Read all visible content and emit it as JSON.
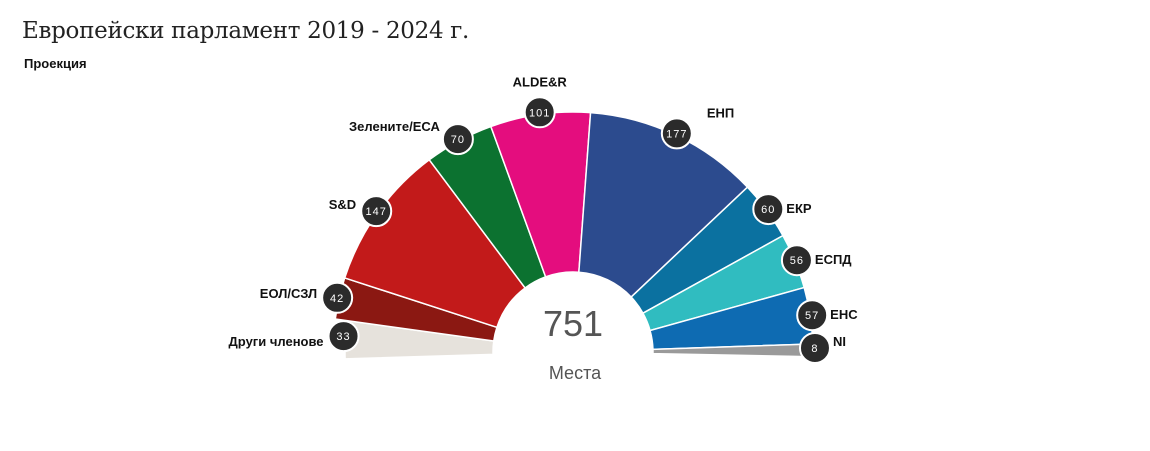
{
  "title": "Европейски парламент 2019 - 2024 г.",
  "subtitle": "Проекция",
  "chart_data": {
    "type": "pie",
    "variant": "parliament-half-donut",
    "total": "751",
    "total_label": "Места",
    "slices": [
      {
        "label": "Други членове",
        "value": 33,
        "color": "#e6e2dc"
      },
      {
        "label": "ЕОЛ/СЗЛ",
        "value": 42,
        "color": "#8b1812"
      },
      {
        "label": "S&D",
        "value": 147,
        "color": "#c21a1a"
      },
      {
        "label": "Зелените/ЕСА",
        "value": 70,
        "color": "#0c7230"
      },
      {
        "label": "ALDE&R",
        "value": 101,
        "color": "#e40d7e"
      },
      {
        "label": "ЕНП",
        "value": 177,
        "color": "#2c4b8e"
      },
      {
        "label": "ЕКР",
        "value": 60,
        "color": "#0b71a0"
      },
      {
        "label": "ЕСПД",
        "value": 56,
        "color": "#30bcc0"
      },
      {
        "label": "ЕНС",
        "value": 57,
        "color": "#0e6bb2"
      },
      {
        "label": "NI",
        "value": 8,
        "color": "#9a9a9a"
      }
    ]
  }
}
